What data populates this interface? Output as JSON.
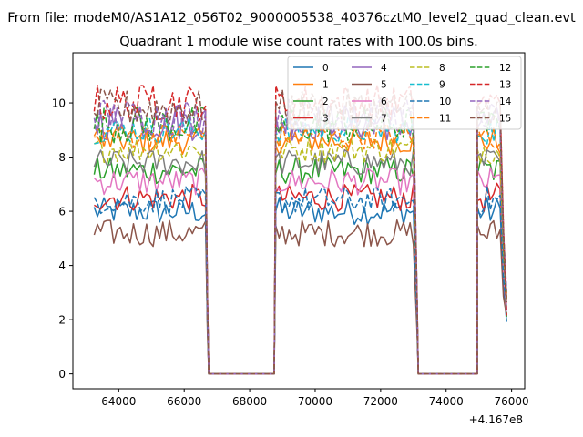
{
  "figure": {
    "suptitle": "From file: modeM0/AS1A12_056T02_9000005538_40376cztM0_level2_quad_clean.evt",
    "title": "Quadrant 1 module wise count rates with 100.0s bins.",
    "x_offset_label": "+4.167e8"
  },
  "chart_data": {
    "type": "line",
    "title": "Quadrant 1 module wise count rates with 100.0s bins.",
    "xlabel": "",
    "ylabel": "",
    "x_offset": 416700000,
    "xlim": [
      62600,
      76400
    ],
    "ylim": [
      -0.55,
      11.85
    ],
    "x_ticks": [
      64000,
      66000,
      68000,
      70000,
      72000,
      74000,
      76000
    ],
    "y_ticks": [
      0,
      2,
      4,
      6,
      8,
      10
    ],
    "x_tick_labels": [
      "64000",
      "66000",
      "68000",
      "70000",
      "72000",
      "74000",
      "76000"
    ],
    "y_tick_labels": [
      "0",
      "2",
      "4",
      "6",
      "8",
      "10"
    ],
    "grid": false,
    "legend_position": "top-right",
    "legend_columns": 4,
    "segments": [
      {
        "start": 63250,
        "end": 66650
      },
      {
        "start": 68800,
        "end": 73050
      },
      {
        "start": 74950,
        "end": 75850
      }
    ],
    "zero_ranges": [
      [
        66750,
        68750
      ],
      [
        73150,
        74950
      ]
    ],
    "series": [
      {
        "name": "0",
        "color": "#1f77b4",
        "dash": "solid",
        "level": 6.0
      },
      {
        "name": "1",
        "color": "#ff7f0e",
        "dash": "solid",
        "level": 8.6
      },
      {
        "name": "2",
        "color": "#2ca02c",
        "dash": "solid",
        "level": 7.5
      },
      {
        "name": "3",
        "color": "#d62728",
        "dash": "solid",
        "level": 6.5
      },
      {
        "name": "4",
        "color": "#9467bd",
        "dash": "solid",
        "level": 9.3
      },
      {
        "name": "5",
        "color": "#8c564b",
        "dash": "solid",
        "level": 5.2
      },
      {
        "name": "6",
        "color": "#e377c2",
        "dash": "solid",
        "level": 7.1
      },
      {
        "name": "7",
        "color": "#7f7f7f",
        "dash": "solid",
        "level": 7.8
      },
      {
        "name": "8",
        "color": "#bcbd22",
        "dash": "dashed",
        "level": 8.3
      },
      {
        "name": "9",
        "color": "#17becf",
        "dash": "dashed",
        "level": 9.0
      },
      {
        "name": "10",
        "color": "#1f77b4",
        "dash": "dashed",
        "level": 6.4
      },
      {
        "name": "11",
        "color": "#ff7f0e",
        "dash": "dashed",
        "level": 8.8
      },
      {
        "name": "12",
        "color": "#2ca02c",
        "dash": "dashed",
        "level": 9.2
      },
      {
        "name": "13",
        "color": "#d62728",
        "dash": "dashed",
        "level": 10.0
      },
      {
        "name": "14",
        "color": "#9467bd",
        "dash": "dashed",
        "level": 9.5
      },
      {
        "name": "15",
        "color": "#8c564b",
        "dash": "dashed",
        "level": 9.8
      }
    ]
  }
}
